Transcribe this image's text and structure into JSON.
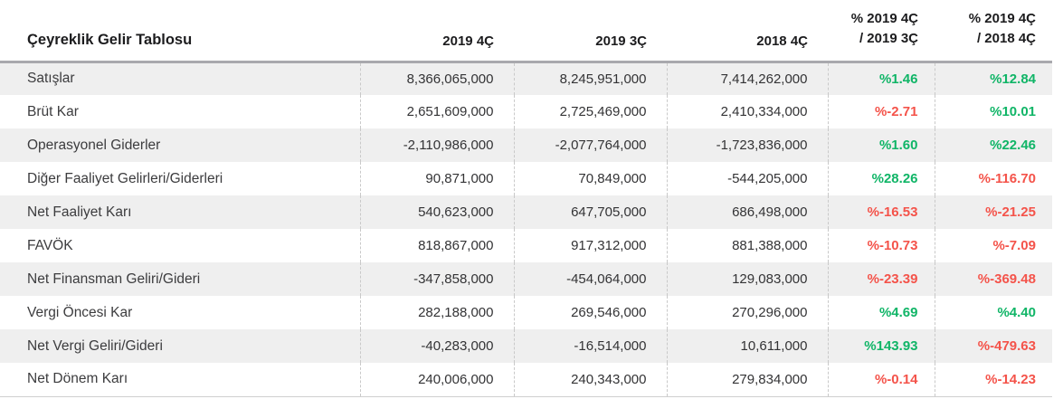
{
  "colors": {
    "positive": "#10b567",
    "negative": "#f4534a",
    "stripe": "#efefef",
    "header_rule": "#a9a9ad"
  },
  "table": {
    "title": "Çeyreklik Gelir Tablosu",
    "columns": {
      "q1": "2019 4Ç",
      "q2": "2019 3Ç",
      "q3": "2018 4Ç",
      "p1_line1": "% 2019 4Ç",
      "p1_line2": "/ 2019 3Ç",
      "p2_line1": "% 2019 4Ç",
      "p2_line2": "/ 2018 4Ç"
    },
    "rows": [
      {
        "label": "Satışlar",
        "v2019_4c": "8,366,065,000",
        "v2019_3c": "8,245,951,000",
        "v2018_4c": "7,414,262,000",
        "pct_vs_2019_3c": "%1.46",
        "pct_vs_2018_4c": "%12.84"
      },
      {
        "label": "Brüt Kar",
        "v2019_4c": "2,651,609,000",
        "v2019_3c": "2,725,469,000",
        "v2018_4c": "2,410,334,000",
        "pct_vs_2019_3c": "%-2.71",
        "pct_vs_2018_4c": "%10.01"
      },
      {
        "label": "Operasyonel Giderler",
        "v2019_4c": "-2,110,986,000",
        "v2019_3c": "-2,077,764,000",
        "v2018_4c": "-1,723,836,000",
        "pct_vs_2019_3c": "%1.60",
        "pct_vs_2018_4c": "%22.46"
      },
      {
        "label": "Diğer Faaliyet Gelirleri/Giderleri",
        "v2019_4c": "90,871,000",
        "v2019_3c": "70,849,000",
        "v2018_4c": "-544,205,000",
        "pct_vs_2019_3c": "%28.26",
        "pct_vs_2018_4c": "%-116.70"
      },
      {
        "label": "Net Faaliyet Karı",
        "v2019_4c": "540,623,000",
        "v2019_3c": "647,705,000",
        "v2018_4c": "686,498,000",
        "pct_vs_2019_3c": "%-16.53",
        "pct_vs_2018_4c": "%-21.25"
      },
      {
        "label": "FAVÖK",
        "v2019_4c": "818,867,000",
        "v2019_3c": "917,312,000",
        "v2018_4c": "881,388,000",
        "pct_vs_2019_3c": "%-10.73",
        "pct_vs_2018_4c": "%-7.09"
      },
      {
        "label": "Net Finansman Geliri/Gideri",
        "v2019_4c": "-347,858,000",
        "v2019_3c": "-454,064,000",
        "v2018_4c": "129,083,000",
        "pct_vs_2019_3c": "%-23.39",
        "pct_vs_2018_4c": "%-369.48"
      },
      {
        "label": "Vergi Öncesi Kar",
        "v2019_4c": "282,188,000",
        "v2019_3c": "269,546,000",
        "v2018_4c": "270,296,000",
        "pct_vs_2019_3c": "%4.69",
        "pct_vs_2018_4c": "%4.40"
      },
      {
        "label": "Net Vergi Geliri/Gideri",
        "v2019_4c": "-40,283,000",
        "v2019_3c": "-16,514,000",
        "v2018_4c": "10,611,000",
        "pct_vs_2019_3c": "%143.93",
        "pct_vs_2018_4c": "%-479.63"
      },
      {
        "label": "Net Dönem Karı",
        "v2019_4c": "240,006,000",
        "v2019_3c": "240,343,000",
        "v2018_4c": "279,834,000",
        "pct_vs_2019_3c": "%-0.14",
        "pct_vs_2018_4c": "%-14.23"
      }
    ]
  }
}
